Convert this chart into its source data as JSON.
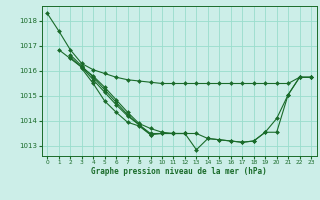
{
  "xlabel": "Graphe pression niveau de la mer (hPa)",
  "ylim": [
    1012.6,
    1018.6
  ],
  "xlim": [
    -0.5,
    23.5
  ],
  "yticks": [
    1013,
    1014,
    1015,
    1016,
    1017,
    1018
  ],
  "xticks": [
    0,
    1,
    2,
    3,
    4,
    5,
    6,
    7,
    8,
    9,
    10,
    11,
    12,
    13,
    14,
    15,
    16,
    17,
    18,
    19,
    20,
    21,
    22,
    23
  ],
  "bg_color": "#cceee8",
  "grid_color": "#99ddcc",
  "line_color": "#1a6b2a",
  "lines": [
    {
      "x": [
        0,
        1,
        2,
        3,
        4,
        5,
        6,
        7,
        8,
        9,
        10,
        11,
        12,
        13,
        14,
        15,
        16,
        17,
        18,
        19,
        20,
        21,
        22,
        23
      ],
      "y": [
        1018.3,
        1017.6,
        1016.85,
        1016.3,
        1016.05,
        1015.9,
        1015.75,
        1015.65,
        1015.6,
        1015.55,
        1015.5,
        1015.5,
        1015.5,
        1015.5,
        1015.5,
        1015.5,
        1015.5,
        1015.5,
        1015.5,
        1015.5,
        1015.5,
        1015.5,
        1015.75,
        1015.75
      ]
    },
    {
      "x": [
        1,
        2,
        3,
        4,
        5,
        6,
        7,
        8,
        9,
        10,
        11,
        12,
        13,
        14,
        15,
        16,
        17,
        18,
        19,
        20,
        21,
        22,
        23
      ],
      "y": [
        1016.85,
        1016.5,
        1016.15,
        1015.8,
        1015.35,
        1014.85,
        1014.35,
        1013.9,
        1013.7,
        1013.55,
        1013.5,
        1013.5,
        1012.85,
        1013.3,
        1013.25,
        1013.2,
        1013.15,
        1013.2,
        1013.55,
        1014.1,
        1015.05,
        1015.75,
        1015.75
      ]
    },
    {
      "x": [
        2,
        3,
        4,
        5,
        6,
        7,
        8,
        9,
        10,
        11,
        12,
        13,
        14,
        15,
        16,
        17,
        18,
        19,
        20,
        21,
        22,
        23
      ],
      "y": [
        1016.65,
        1016.2,
        1015.75,
        1015.25,
        1014.75,
        1014.25,
        1013.85,
        1013.5,
        1013.5,
        1013.5,
        1013.5,
        1013.5,
        1013.3,
        1013.25,
        1013.2,
        1013.15,
        1013.2,
        1013.55,
        1013.55,
        1015.05,
        1015.75,
        1015.75
      ]
    },
    {
      "x": [
        2,
        3,
        4,
        5,
        6,
        7,
        8,
        9,
        10,
        11,
        12
      ],
      "y": [
        1016.55,
        1016.15,
        1015.65,
        1015.15,
        1014.65,
        1014.2,
        1013.85,
        1013.45,
        1013.5,
        1013.5,
        1013.5
      ]
    },
    {
      "x": [
        3,
        4,
        5,
        6,
        7,
        8,
        9
      ],
      "y": [
        1016.1,
        1015.5,
        1014.8,
        1014.35,
        1013.95,
        1013.8,
        1013.45
      ]
    }
  ]
}
